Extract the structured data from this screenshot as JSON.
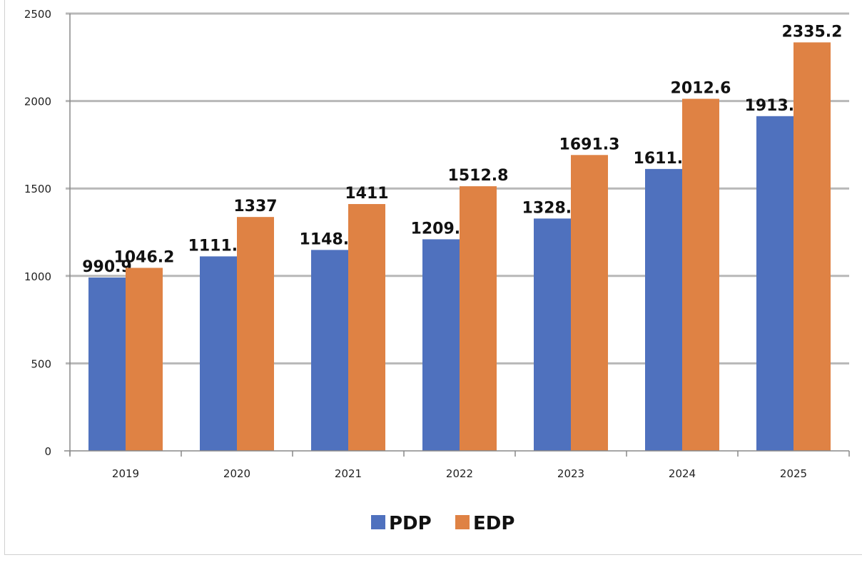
{
  "chart_data": {
    "type": "bar",
    "categories": [
      "2019",
      "2020",
      "2021",
      "2022",
      "2023",
      "2024",
      "2025"
    ],
    "series": [
      {
        "name": "PDP",
        "values": [
          990.9,
          1111.8,
          1148.6,
          1209.5,
          1328.1,
          1611.5,
          1913.5
        ],
        "color": "#4f71be"
      },
      {
        "name": "EDP",
        "values": [
          1046.2,
          1337,
          1411,
          1512.8,
          1691.3,
          2012.6,
          2335.2
        ],
        "color": "#df8244"
      }
    ],
    "value_labels": {
      "PDP": [
        "990.9",
        "1111.8",
        "1148.6",
        "1209.5",
        "1328.1",
        "1611.5",
        "1913.5"
      ],
      "EDP": [
        "1046.2",
        "1337",
        "1411",
        "1512.8",
        "1691.3",
        "2012.6",
        "2335.2"
      ]
    },
    "yticks": [
      "0",
      "500",
      "1000",
      "1500",
      "2000",
      "2500"
    ],
    "ylim": [
      0,
      2500
    ],
    "grid": true,
    "legend": "bottom",
    "title": "",
    "xlabel": "",
    "ylabel": ""
  }
}
